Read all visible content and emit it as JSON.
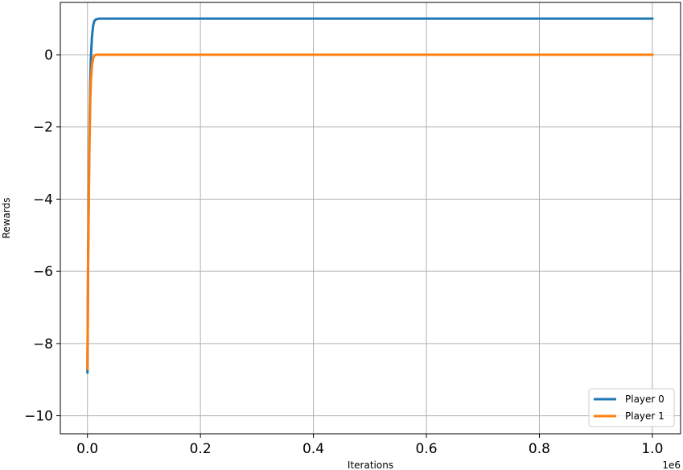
{
  "chart_data": {
    "type": "line",
    "title": "",
    "xlabel": "Iterations",
    "ylabel": "Rewards",
    "x_offset_label": "1e6",
    "xlim": [
      -0.048,
      1.05
    ],
    "ylim": [
      -10.5,
      1.45
    ],
    "xticks": [
      0.0,
      0.2,
      0.4,
      0.6,
      0.8,
      1.0
    ],
    "xtick_labels": [
      "0.0",
      "0.2",
      "0.4",
      "0.6",
      "0.8",
      "1.0"
    ],
    "yticks": [
      -10,
      -8,
      -6,
      -4,
      -2,
      0
    ],
    "ytick_labels": [
      "−10",
      "−8",
      "−6",
      "−4",
      "−2",
      "0"
    ],
    "grid": true,
    "legend_position": "bottom-right",
    "series": [
      {
        "name": "Player 0",
        "color": "#1f77b4",
        "x": [
          0.0,
          0.0005,
          0.001,
          0.002,
          0.003,
          0.004,
          0.005,
          0.006,
          0.008,
          0.01,
          0.012,
          0.015,
          0.02,
          0.05,
          0.1,
          0.3,
          0.5,
          0.7,
          0.9,
          1.0
        ],
        "y": [
          -8.8,
          -7.5,
          -6.0,
          -4.3,
          -2.8,
          -1.7,
          -0.8,
          -0.1,
          0.5,
          0.8,
          0.93,
          0.98,
          1.0,
          1.0,
          1.0,
          1.0,
          1.0,
          1.0,
          1.0,
          1.0
        ]
      },
      {
        "name": "Player 1",
        "color": "#ff7f0e",
        "x": [
          0.0,
          0.0005,
          0.001,
          0.002,
          0.003,
          0.004,
          0.005,
          0.006,
          0.008,
          0.01,
          0.012,
          0.015,
          0.02,
          0.05,
          0.1,
          0.3,
          0.5,
          0.7,
          0.9,
          1.0
        ],
        "y": [
          -8.7,
          -7.5,
          -6.0,
          -4.6,
          -3.2,
          -2.1,
          -1.3,
          -0.75,
          -0.3,
          -0.1,
          -0.03,
          0.0,
          0.0,
          0.0,
          0.0,
          0.0,
          0.0,
          0.0,
          0.0,
          0.0
        ]
      }
    ]
  }
}
